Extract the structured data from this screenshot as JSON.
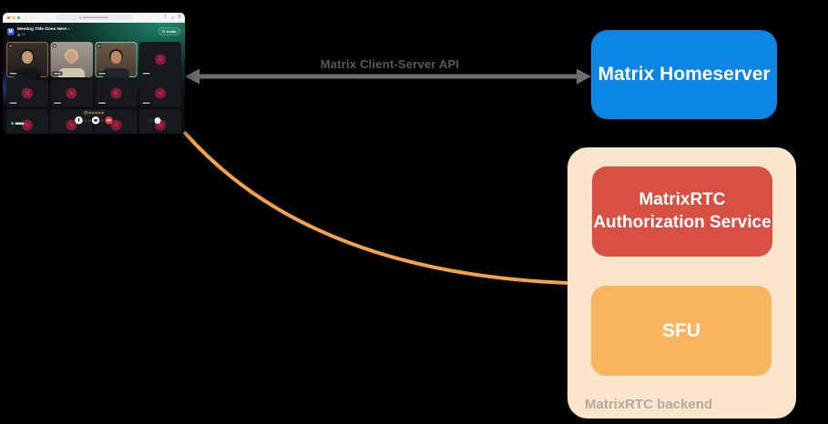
{
  "arrow": {
    "label": "Matrix Client-Server API",
    "color": "#6f6f6f",
    "label_color": "#595959"
  },
  "homeserver": {
    "label": "Matrix Homeserver",
    "bg": "#0b86e5"
  },
  "backend": {
    "label": "MatrixRTC backend",
    "bg": "#fce5cd",
    "label_color": "#b2a99f",
    "auth_service": {
      "label": "MatrixRTC Authorization Service",
      "bg": "#d84f44"
    },
    "sfu": {
      "label": "SFU",
      "bg": "#f9b55e"
    }
  },
  "connector": {
    "color": "#f6a14c"
  },
  "screenshot": {
    "browser": {
      "traffic_lights": [
        "#ff5f57",
        "#febc2e",
        "#28c840"
      ]
    },
    "header": {
      "logo_letter": "M",
      "title": "Meeting Title Goes Here",
      "participants": "22",
      "invite_label": "Invite"
    },
    "grid": {
      "avatar_letter": "N",
      "tiles": [
        {
          "type": "video",
          "border": "#cf7a2f",
          "wall": "#37302b",
          "wall2": "#221d1a",
          "hair": "#1f1812",
          "skin": "#c79a77",
          "shirt": "#15151a"
        },
        {
          "type": "video",
          "border": "",
          "wall": "#a39c93",
          "wall2": "#7a736a",
          "hair": "#d6bd8e",
          "skin": "#c9a183",
          "shirt": "#cfc8b0"
        },
        {
          "type": "video",
          "border": "#8fdccb",
          "wall": "#6e5b49",
          "wall2": "#463a2f",
          "hair": "#241a12",
          "skin": "#bd8a69",
          "shirt": "#20242c"
        },
        {
          "type": "avatar"
        },
        {
          "type": "avatar"
        },
        {
          "type": "avatar"
        },
        {
          "type": "avatar"
        },
        {
          "type": "avatar"
        },
        {
          "type": "avatar"
        },
        {
          "type": "avatar"
        },
        {
          "type": "avatar"
        },
        {
          "type": "avatar"
        }
      ]
    },
    "controls": {
      "page_dots": 5
    }
  }
}
